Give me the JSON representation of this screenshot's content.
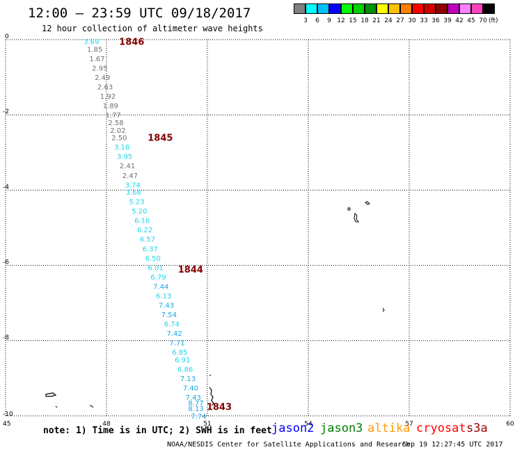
{
  "title": "12:00 – 23:59 UTC 09/18/2017",
  "subtitle": "12 hour collection of altimeter wave heights",
  "note": "note: 1) Time is in UTC; 2) SWH is in feet",
  "credit": "NOAA/NESDIS Center for Satellite Applications and Research",
  "timestamp": "Sep 19 12:27:45 UTC 2017",
  "color_scale": {
    "unit": "(ft)",
    "labels": [
      "3",
      "6",
      "9",
      "12",
      "15",
      "18",
      "21",
      "24",
      "27",
      "30",
      "33",
      "36",
      "39",
      "42",
      "45",
      "70"
    ],
    "colors": [
      "#808080",
      "#00ffff",
      "#00bfff",
      "#0000ff",
      "#00ff00",
      "#00d000",
      "#009000",
      "#ffff00",
      "#ffc000",
      "#ff8000",
      "#ff0000",
      "#d00000",
      "#900000",
      "#c000c0",
      "#ff80ff",
      "#ff40c0",
      "#000000"
    ]
  },
  "satellites": [
    {
      "name": "jason2",
      "color": "#0000ff"
    },
    {
      "name": "jason3",
      "color": "#008000"
    },
    {
      "name": "altika",
      "color": "#ff9900"
    },
    {
      "name": "cryosat",
      "color": "#ff0000"
    },
    {
      "name": "s3a",
      "color": "#990000"
    }
  ],
  "map": {
    "lon_range": [
      45,
      60
    ],
    "lat_range": [
      -10,
      0
    ],
    "lon_ticks": [
      "45",
      "48",
      "51",
      "54",
      "57",
      "60"
    ],
    "lat_ticks": [
      "0",
      "-2",
      "-4",
      "-6",
      "-8",
      "-10"
    ]
  },
  "time_labels": [
    {
      "text": "1846",
      "lon": 48.75,
      "lat": -0.05
    },
    {
      "text": "1845",
      "lon": 49.6,
      "lat": -2.6
    },
    {
      "text": "1844",
      "lon": 50.5,
      "lat": -6.1
    },
    {
      "text": "1843",
      "lon": 51.35,
      "lat": -9.75
    }
  ],
  "observations": [
    {
      "v": "3.69",
      "c": "cyan",
      "lon": 47.55,
      "lat": -0.05
    },
    {
      "v": "1.85",
      "c": "gray",
      "lon": 47.65,
      "lat": -0.25
    },
    {
      "v": "1.67",
      "c": "gray",
      "lon": 47.72,
      "lat": -0.5
    },
    {
      "v": "2.95",
      "c": "gray",
      "lon": 47.8,
      "lat": -0.75
    },
    {
      "v": "2.49",
      "c": "gray",
      "lon": 47.88,
      "lat": -1.0
    },
    {
      "v": "2.63",
      "c": "gray",
      "lon": 47.96,
      "lat": -1.25
    },
    {
      "v": "1.92",
      "c": "gray",
      "lon": 48.04,
      "lat": -1.5
    },
    {
      "v": "1.89",
      "c": "gray",
      "lon": 48.12,
      "lat": -1.75
    },
    {
      "v": "1.77",
      "c": "gray",
      "lon": 48.2,
      "lat": -2.0
    },
    {
      "v": "2.58",
      "c": "gray",
      "lon": 48.28,
      "lat": -2.2
    },
    {
      "v": "2.02",
      "c": "gray",
      "lon": 48.34,
      "lat": -2.4
    },
    {
      "v": "2.50",
      "c": "gray",
      "lon": 48.38,
      "lat": -2.6
    },
    {
      "v": "3.18",
      "c": "cyan",
      "lon": 48.46,
      "lat": -2.85
    },
    {
      "v": "3.95",
      "c": "cyan",
      "lon": 48.54,
      "lat": -3.1
    },
    {
      "v": "2.41",
      "c": "gray",
      "lon": 48.62,
      "lat": -3.35
    },
    {
      "v": "2.47",
      "c": "gray",
      "lon": 48.7,
      "lat": -3.6
    },
    {
      "v": "3.74",
      "c": "cyan",
      "lon": 48.78,
      "lat": -3.85
    },
    {
      "v": "3.68",
      "c": "cyan",
      "lon": 48.8,
      "lat": -4.05
    },
    {
      "v": "5.23",
      "c": "cyan",
      "lon": 48.9,
      "lat": -4.3
    },
    {
      "v": "5.20",
      "c": "cyan",
      "lon": 48.98,
      "lat": -4.55
    },
    {
      "v": "6.16",
      "c": "cyan",
      "lon": 49.06,
      "lat": -4.8
    },
    {
      "v": "6.22",
      "c": "cyan",
      "lon": 49.14,
      "lat": -5.05
    },
    {
      "v": "6.57",
      "c": "cyan",
      "lon": 49.22,
      "lat": -5.3
    },
    {
      "v": "6.37",
      "c": "cyan",
      "lon": 49.3,
      "lat": -5.55
    },
    {
      "v": "6.50",
      "c": "cyan",
      "lon": 49.38,
      "lat": -5.8
    },
    {
      "v": "6.01",
      "c": "cyan",
      "lon": 49.46,
      "lat": -6.05
    },
    {
      "v": "6.79",
      "c": "cyan",
      "lon": 49.54,
      "lat": -6.3
    },
    {
      "v": "7.44",
      "c": "blue",
      "lon": 49.62,
      "lat": -6.55
    },
    {
      "v": "6.13",
      "c": "cyan",
      "lon": 49.7,
      "lat": -6.8
    },
    {
      "v": "7.43",
      "c": "blue",
      "lon": 49.78,
      "lat": -7.05
    },
    {
      "v": "7.54",
      "c": "blue",
      "lon": 49.86,
      "lat": -7.3
    },
    {
      "v": "6.74",
      "c": "cyan",
      "lon": 49.94,
      "lat": -7.55
    },
    {
      "v": "7.42",
      "c": "blue",
      "lon": 50.02,
      "lat": -7.8
    },
    {
      "v": "7.71",
      "c": "blue",
      "lon": 50.1,
      "lat": -8.05
    },
    {
      "v": "6.85",
      "c": "cyan",
      "lon": 50.18,
      "lat": -8.3
    },
    {
      "v": "6.91",
      "c": "cyan",
      "lon": 50.26,
      "lat": -8.5
    },
    {
      "v": "6.86",
      "c": "cyan",
      "lon": 50.34,
      "lat": -8.75
    },
    {
      "v": "7.13",
      "c": "blue",
      "lon": 50.42,
      "lat": -9.0
    },
    {
      "v": "7.40",
      "c": "blue",
      "lon": 50.5,
      "lat": -9.25
    },
    {
      "v": "7.43",
      "c": "blue",
      "lon": 50.58,
      "lat": -9.5
    },
    {
      "v": "8.77",
      "c": "blue",
      "lon": 50.66,
      "lat": -9.65
    },
    {
      "v": "8.13",
      "c": "blue",
      "lon": 50.66,
      "lat": -9.8
    },
    {
      "v": "7.74",
      "c": "blue",
      "lon": 50.74,
      "lat": -10.0
    }
  ],
  "value_colors": {
    "gray": "#6e6e6e",
    "cyan": "#1ad6ee",
    "blue": "#1aa4e0"
  }
}
